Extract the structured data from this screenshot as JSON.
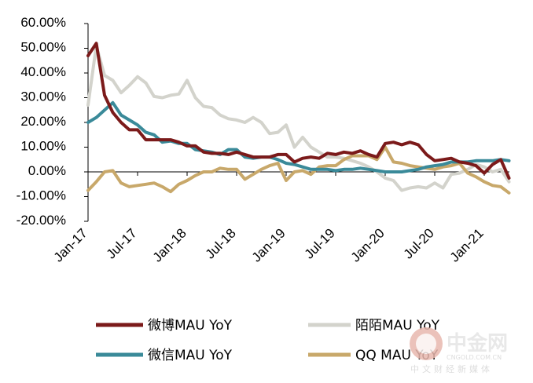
{
  "chart_data": {
    "type": "line",
    "title": "",
    "xlabel": "",
    "ylabel": "",
    "ylim": [
      -0.2,
      0.6
    ],
    "y_ticks": [
      -0.2,
      -0.1,
      0.0,
      0.1,
      0.2,
      0.3,
      0.4,
      0.5,
      0.6
    ],
    "y_tick_labels": [
      "-20.00%",
      "-10.00%",
      "0.00%",
      "10.00%",
      "20.00%",
      "30.00%",
      "40.00%",
      "50.00%",
      "60.00%"
    ],
    "x_tick_labels": [
      "Jan-17",
      "Jul-17",
      "Jan-18",
      "Jul-18",
      "Jan-19",
      "Jul-19",
      "Jan-20",
      "Jul-20",
      "Jan-21"
    ],
    "x_tick_months": [
      0,
      6,
      12,
      18,
      24,
      30,
      36,
      42,
      48
    ],
    "grid": false,
    "legend_placement": "bottom",
    "series": [
      {
        "name": "微博MAU YoY",
        "color": "#7b1a1a",
        "values": [
          0.47,
          0.52,
          0.31,
          0.24,
          0.2,
          0.17,
          0.17,
          0.13,
          0.13,
          0.13,
          0.13,
          0.12,
          0.105,
          0.105,
          0.08,
          0.075,
          0.075,
          0.07,
          0.08,
          0.07,
          0.06,
          0.06,
          0.06,
          0.07,
          0.07,
          0.04,
          0.055,
          0.06,
          0.055,
          0.075,
          0.07,
          0.08,
          0.075,
          0.085,
          0.07,
          0.06,
          0.115,
          0.12,
          0.11,
          0.12,
          0.11,
          0.07,
          0.045,
          0.05,
          0.055,
          0.04,
          0.035,
          0.025,
          -0.005,
          0.03,
          0.05,
          -0.025
        ]
      },
      {
        "name": "陌陌MAU YoY",
        "color": "#d3d3cc",
        "values": [
          0.27,
          0.51,
          0.39,
          0.37,
          0.32,
          0.35,
          0.385,
          0.36,
          0.305,
          0.3,
          0.31,
          0.315,
          0.37,
          0.3,
          0.265,
          0.26,
          0.23,
          0.215,
          0.21,
          0.2,
          0.22,
          0.2,
          0.155,
          0.16,
          0.19,
          0.1,
          0.14,
          0.1,
          0.08,
          0.06,
          0.06,
          0.055,
          0.045,
          0.035,
          0.02,
          0.0,
          -0.025,
          -0.035,
          -0.075,
          -0.065,
          -0.06,
          -0.065,
          -0.045,
          -0.065,
          -0.01,
          -0.005,
          0.01,
          0.03,
          0.02,
          0.0,
          0.01,
          -0.04
        ]
      },
      {
        "name": "微信MAU YoY",
        "color": "#3a8a99",
        "values": [
          0.2,
          0.22,
          0.25,
          0.28,
          0.23,
          0.21,
          0.19,
          0.16,
          0.15,
          0.12,
          0.125,
          0.115,
          0.115,
          0.09,
          0.085,
          0.08,
          0.07,
          0.09,
          0.09,
          0.06,
          0.055,
          0.06,
          0.06,
          0.05,
          0.035,
          0.03,
          0.02,
          0.01,
          0.01,
          0.01,
          0.005,
          0.01,
          0.01,
          0.015,
          0.01,
          0.005,
          0.0,
          0.0,
          0.0,
          0.005,
          0.01,
          0.02,
          0.025,
          0.03,
          0.04,
          0.04,
          0.04,
          0.045,
          0.045,
          0.045,
          0.05,
          0.045
        ]
      },
      {
        "name": "QQ MAU YoY",
        "color": "#c8a86a",
        "values": [
          -0.075,
          -0.04,
          0.0,
          0.005,
          -0.045,
          -0.06,
          -0.055,
          -0.05,
          -0.045,
          -0.06,
          -0.08,
          -0.05,
          -0.035,
          -0.015,
          0.0,
          0.0,
          0.015,
          0.01,
          0.01,
          -0.03,
          -0.01,
          0.01,
          0.025,
          0.035,
          -0.035,
          0.0,
          0.005,
          -0.01,
          0.02,
          0.025,
          0.025,
          0.05,
          0.065,
          0.065,
          0.065,
          0.05,
          0.1,
          0.04,
          0.035,
          0.025,
          0.02,
          0.015,
          0.01,
          0.02,
          0.025,
          0.035,
          -0.005,
          -0.02,
          -0.04,
          -0.055,
          -0.06,
          -0.085
        ]
      }
    ]
  },
  "watermark": {
    "logo": "中金网",
    "url": "CNGOLD.COM.CN",
    "subtitle": "中文财经新媒体"
  }
}
